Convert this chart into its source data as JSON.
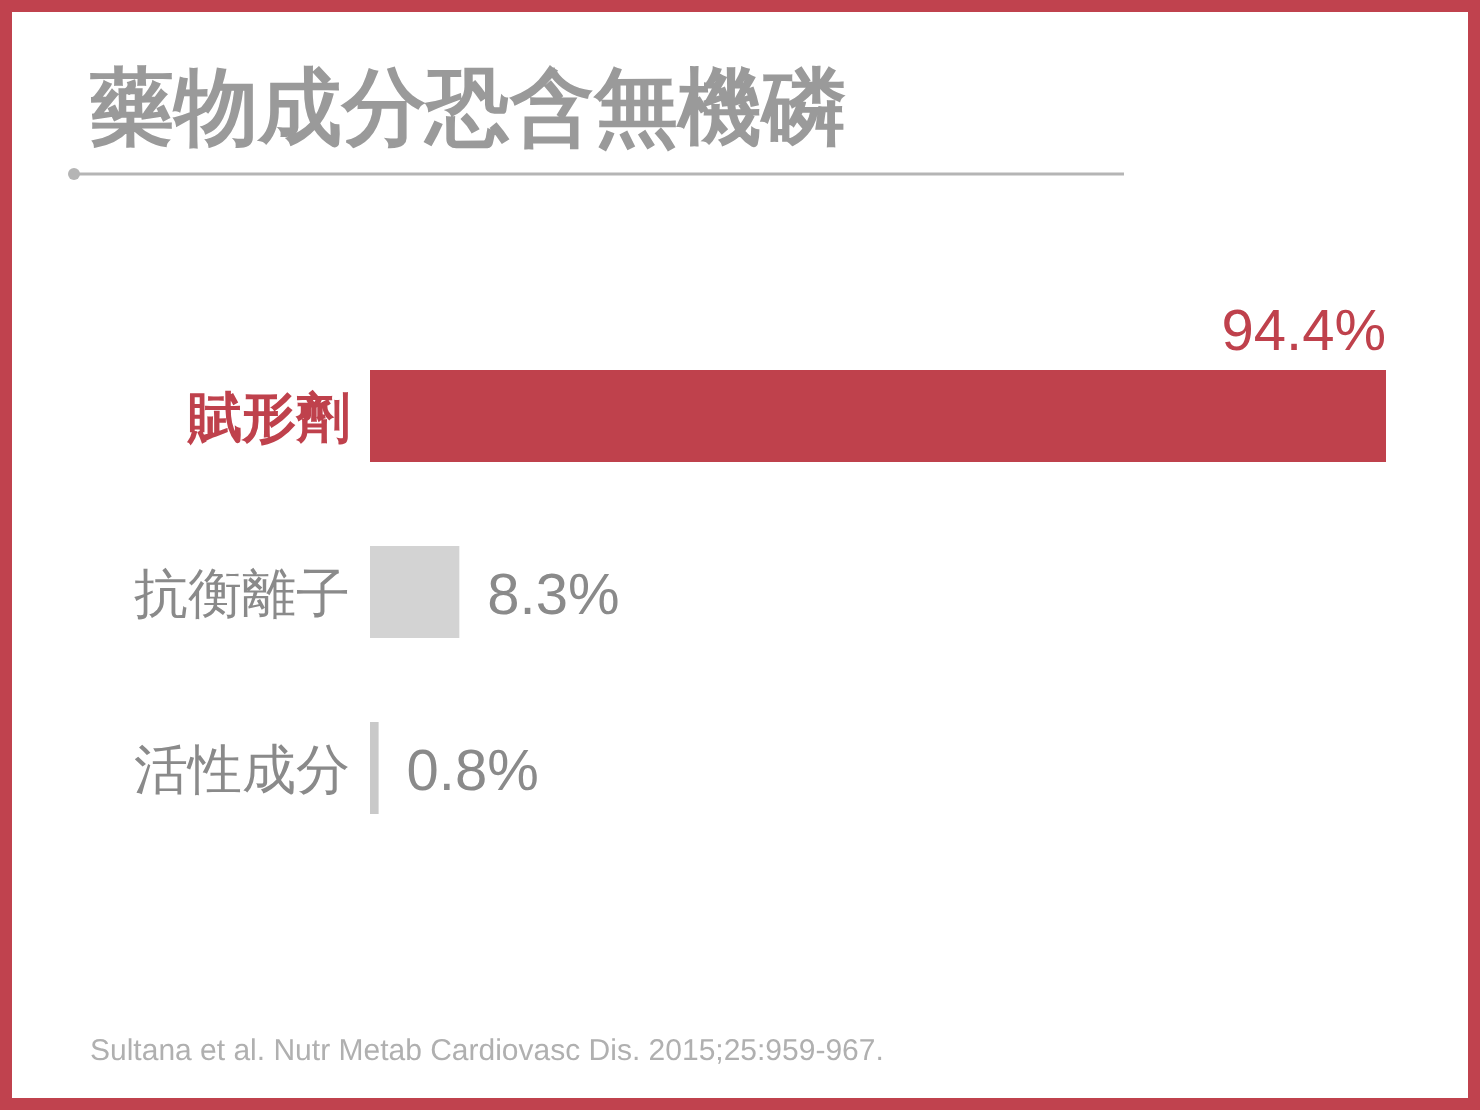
{
  "chart_data": {
    "type": "bar",
    "orientation": "horizontal",
    "title": "藥物成分恐含無機磷",
    "categories": [
      "賦形劑",
      "抗衡離子",
      "活性成分"
    ],
    "values": [
      94.4,
      8.3,
      0.8
    ],
    "value_labels": [
      "94.4%",
      "8.3%",
      "0.8%"
    ],
    "colors": [
      "#bf414c",
      "#d3d3d3",
      "#c9c9c9"
    ],
    "annotations": [
      "Sultana et al. Nutr Metab Cardiovasc Dis. 2015;25:959-967."
    ]
  }
}
